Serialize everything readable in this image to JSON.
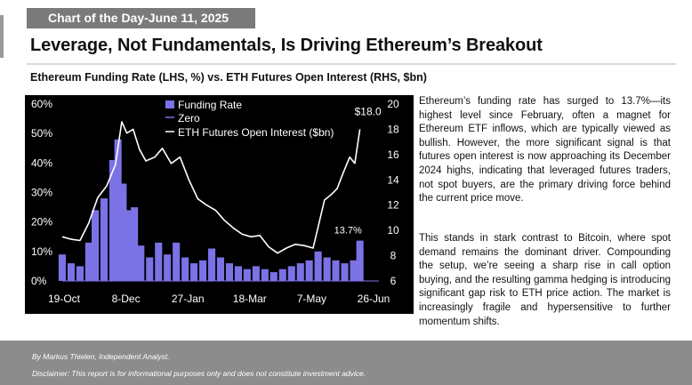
{
  "banner": "Chart of the Day-June 11, 2025",
  "headline": "Leverage, Not Fundamentals, Is Driving Ethereum’s Breakout",
  "subtitle": "Ethereum Funding Rate (LHS, %) vs. ETH Futures Open Interest (RHS, $bn)",
  "body": {
    "p1": "Ethereum’s funding rate has surged to 13.7%—its highest level since February, often a magnet for Ethereum ETF inflows, which are typically viewed as bullish. However, the more significant signal is that futures open interest is now approaching its December 2024 highs, indicating that leveraged futures traders, not spot buyers, are the primary driving force behind the current price move.",
    "p2": "This stands in stark contrast to Bitcoin, where spot demand remains the dominant driver. Compounding the setup, we’re seeing a sharp rise in call option buying, and the resulting gamma hedging is introducing significant gap risk to ETH price action. The market is increasingly fragile and hypersensitive to further momentum shifts."
  },
  "footer": {
    "author": "By Markus Thielen, Independent Analyst.",
    "disclaimer": "Disclaimer: This report is for informational purposes only and does not constitute investment advice."
  },
  "colors": {
    "chart_bg": "#000000",
    "funding_bar": "#7b72e6",
    "oi_line": "#ffffff",
    "zero_line": "#7b72e6",
    "banner_bg": "#7a7a7a",
    "footer_bg": "#8c8c8c"
  },
  "chart_data": {
    "type": "bar",
    "title": "",
    "xlabel": "",
    "x_tick_labels": [
      "19-Oct",
      "8-Dec",
      "27-Jan",
      "18-Mar",
      "7-May",
      "26-Jun"
    ],
    "x_range": [
      "2024-10-19",
      "2025-06-26"
    ],
    "ylim_left": [
      0,
      60
    ],
    "yticks_left": [
      "0%",
      "10%",
      "20%",
      "30%",
      "40%",
      "50%",
      "60%"
    ],
    "ylim_right": [
      6,
      20
    ],
    "yticks_right": [
      "6",
      "8",
      "10",
      "12",
      "14",
      "16",
      "18",
      "20"
    ],
    "legend": [
      "Funding Rate",
      "Zero",
      "ETH Futures Open Interest ($bn)"
    ],
    "legend_position": "top-left",
    "annotations": [
      {
        "text": "$18.0",
        "date": "2025-06-11",
        "value": 18.0,
        "axis": "right"
      },
      {
        "text": "13.7%",
        "date": "2025-06-11",
        "value": 13.7,
        "axis": "left"
      }
    ],
    "series": [
      {
        "name": "Funding Rate",
        "axis": "left",
        "type": "bar",
        "points": [
          [
            "2024-10-19",
            9
          ],
          [
            "2024-10-26",
            6
          ],
          [
            "2024-11-02",
            5
          ],
          [
            "2024-11-09",
            13
          ],
          [
            "2024-11-14",
            24
          ],
          [
            "2024-11-21",
            28
          ],
          [
            "2024-11-28",
            41
          ],
          [
            "2024-12-02",
            48
          ],
          [
            "2024-12-06",
            33
          ],
          [
            "2024-12-10",
            24
          ],
          [
            "2024-12-15",
            25
          ],
          [
            "2024-12-20",
            12
          ],
          [
            "2024-12-27",
            8
          ],
          [
            "2025-01-03",
            13
          ],
          [
            "2025-01-10",
            9
          ],
          [
            "2025-01-17",
            13
          ],
          [
            "2025-01-24",
            8
          ],
          [
            "2025-01-31",
            6
          ],
          [
            "2025-02-07",
            7
          ],
          [
            "2025-02-14",
            11
          ],
          [
            "2025-02-21",
            8
          ],
          [
            "2025-02-28",
            6
          ],
          [
            "2025-03-07",
            5
          ],
          [
            "2025-03-14",
            4
          ],
          [
            "2025-03-21",
            5
          ],
          [
            "2025-03-28",
            4
          ],
          [
            "2025-04-04",
            3
          ],
          [
            "2025-04-11",
            4
          ],
          [
            "2025-04-18",
            5
          ],
          [
            "2025-04-25",
            6
          ],
          [
            "2025-05-02",
            7
          ],
          [
            "2025-05-09",
            10
          ],
          [
            "2025-05-16",
            8
          ],
          [
            "2025-05-23",
            7
          ],
          [
            "2025-05-30",
            6
          ],
          [
            "2025-06-06",
            7
          ],
          [
            "2025-06-11",
            13.7
          ]
        ]
      },
      {
        "name": "ETH Futures Open Interest ($bn)",
        "axis": "right",
        "type": "line",
        "points": [
          [
            "2024-10-19",
            9.5
          ],
          [
            "2024-10-26",
            9.3
          ],
          [
            "2024-11-02",
            9.2
          ],
          [
            "2024-11-09",
            10.6
          ],
          [
            "2024-11-16",
            12.6
          ],
          [
            "2024-11-23",
            13.5
          ],
          [
            "2024-11-30",
            15.2
          ],
          [
            "2024-12-05",
            18.6
          ],
          [
            "2024-12-09",
            17.7
          ],
          [
            "2024-12-14",
            18.0
          ],
          [
            "2024-12-19",
            16.4
          ],
          [
            "2024-12-24",
            15.5
          ],
          [
            "2024-12-31",
            15.8
          ],
          [
            "2025-01-06",
            16.5
          ],
          [
            "2025-01-13",
            15.3
          ],
          [
            "2025-01-20",
            15.8
          ],
          [
            "2025-01-27",
            14.0
          ],
          [
            "2025-02-03",
            12.5
          ],
          [
            "2025-02-10",
            12.0
          ],
          [
            "2025-02-17",
            11.6
          ],
          [
            "2025-02-24",
            10.8
          ],
          [
            "2025-03-03",
            10.2
          ],
          [
            "2025-03-10",
            9.7
          ],
          [
            "2025-03-17",
            9.5
          ],
          [
            "2025-03-24",
            9.6
          ],
          [
            "2025-03-31",
            8.7
          ],
          [
            "2025-04-07",
            8.2
          ],
          [
            "2025-04-14",
            8.6
          ],
          [
            "2025-04-21",
            8.9
          ],
          [
            "2025-04-28",
            8.8
          ],
          [
            "2025-05-05",
            8.6
          ],
          [
            "2025-05-10",
            10.7
          ],
          [
            "2025-05-14",
            12.4
          ],
          [
            "2025-05-19",
            12.8
          ],
          [
            "2025-05-24",
            13.3
          ],
          [
            "2025-05-29",
            14.6
          ],
          [
            "2025-06-03",
            15.8
          ],
          [
            "2025-06-07",
            15.3
          ],
          [
            "2025-06-11",
            18.0
          ]
        ]
      }
    ]
  }
}
